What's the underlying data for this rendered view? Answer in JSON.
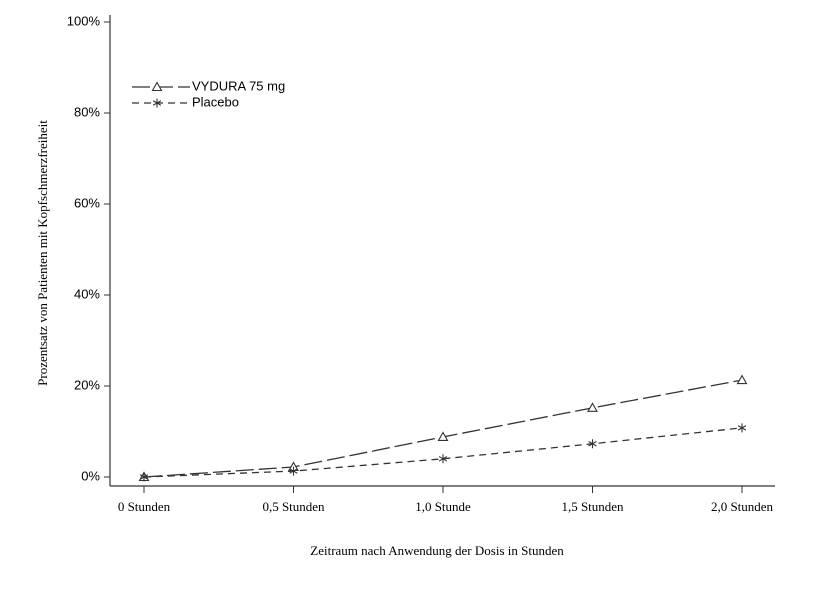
{
  "chart_data": {
    "type": "line",
    "x_label": "Zeitraum nach Anwendung der Dosis in Stunden",
    "y_label": "Prozentsatz von Patienten mit Kopfschmerzfreiheit",
    "categories": [
      "0 Stunden",
      "0,5 Stunden",
      "1,0 Stunde",
      "1,5 Stunden",
      "2,0 Stunden"
    ],
    "series": [
      {
        "name": "VYDURA 75 mg",
        "color": "#333333",
        "marker": "triangle",
        "linestyle": "long-dash",
        "values": [
          0,
          2.2,
          8.8,
          15.2,
          21.3
        ]
      },
      {
        "name": "Placebo",
        "color": "#333333",
        "marker": "asterisk",
        "linestyle": "dash",
        "values": [
          0,
          1.3,
          4.0,
          7.3,
          10.8
        ]
      }
    ],
    "ylim": [
      0,
      100
    ],
    "yticks": [
      {
        "value": 0,
        "label": "0%"
      },
      {
        "value": 20,
        "label": "20%"
      },
      {
        "value": 40,
        "label": "40%"
      },
      {
        "value": 60,
        "label": "60%"
      },
      {
        "value": 80,
        "label": "80%"
      },
      {
        "value": 100,
        "label": "100%"
      }
    ],
    "legend": "top-left"
  }
}
